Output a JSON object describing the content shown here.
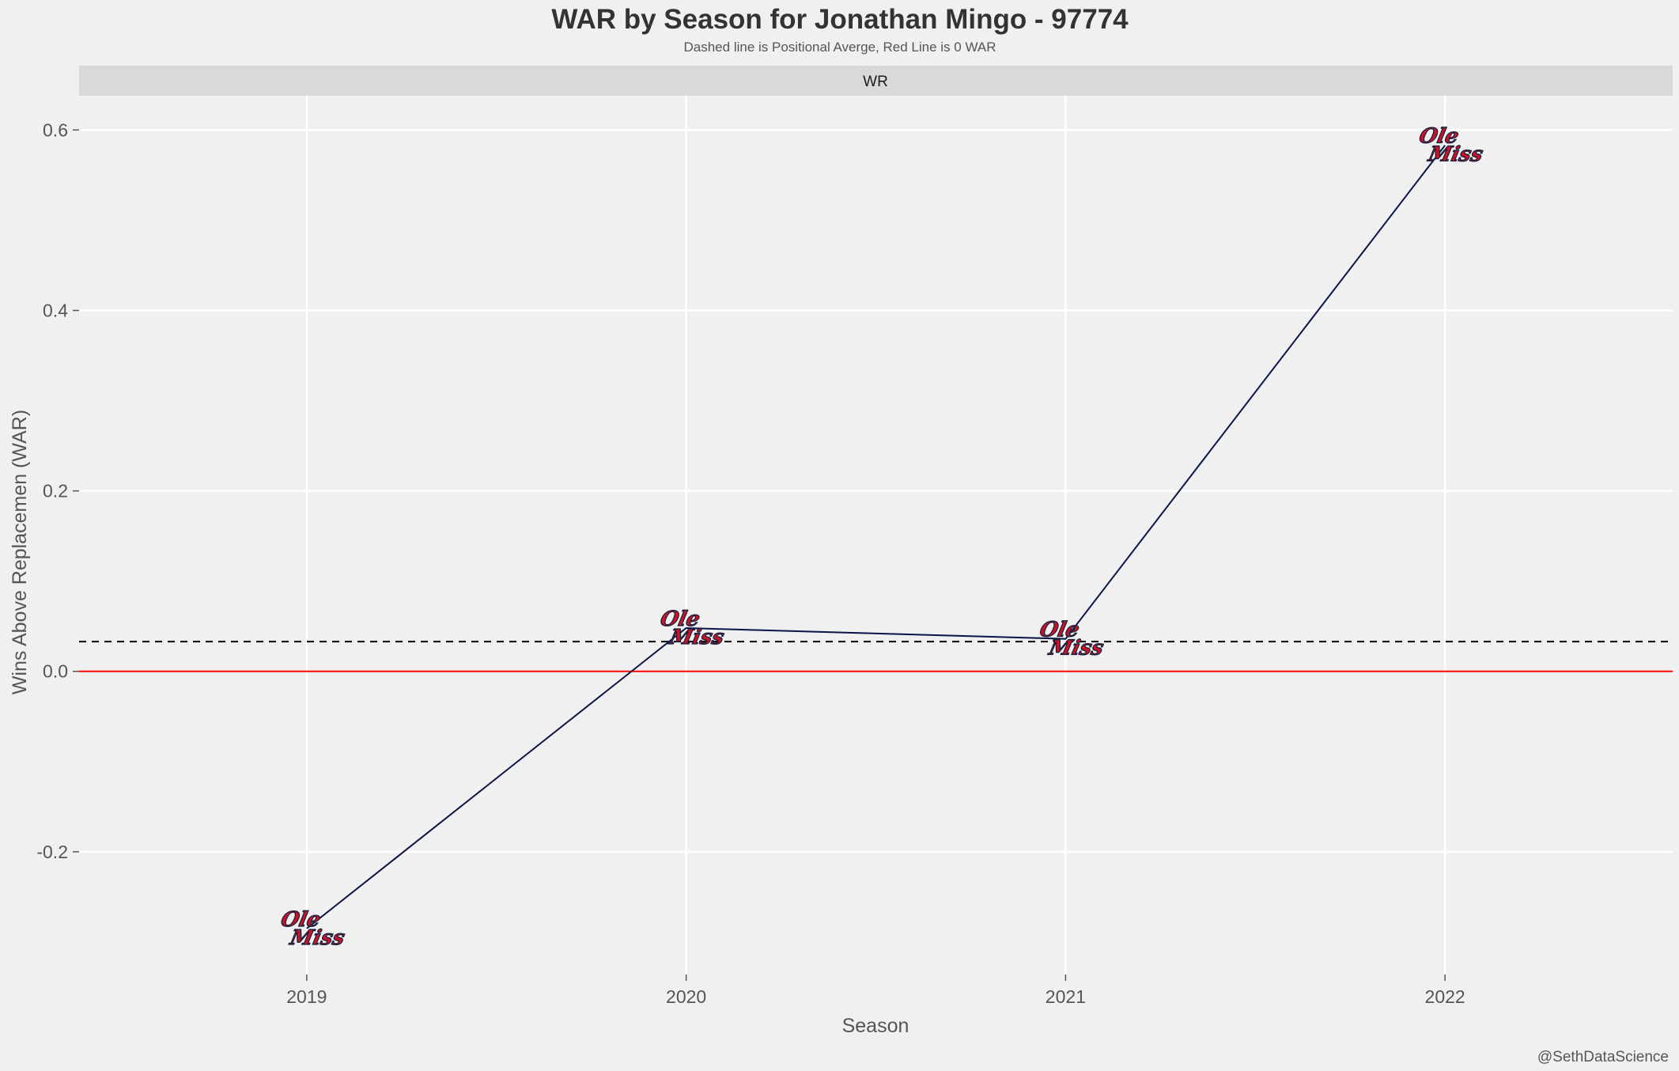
{
  "chart_data": {
    "type": "line",
    "title": "WAR by Season for Jonathan Mingo - 97774",
    "subtitle": "Dashed line is Positional Averge, Red Line is 0 WAR",
    "facet_label": "WR",
    "xlabel": "Season",
    "ylabel": "Wins Above Replacemen (WAR)",
    "caption": "@SethDataScience",
    "x": [
      2019,
      2020,
      2021,
      2022
    ],
    "x_tick_labels": [
      "2019",
      "2020",
      "2021",
      "2022"
    ],
    "xlim": [
      2018.4,
      2022.6
    ],
    "y_ticks": [
      -0.2,
      0.0,
      0.2,
      0.4,
      0.6
    ],
    "y_tick_labels": [
      "-0.2",
      "0.0",
      "0.2",
      "0.4",
      "0.6"
    ],
    "ylim": [
      -0.336,
      0.638
    ],
    "grid": true,
    "series": [
      {
        "values": [
          -0.285,
          0.048,
          0.036,
          0.583
        ],
        "color": "#0b1547",
        "point_marker": "ole-miss-logo-icon"
      }
    ],
    "reference_lines": [
      {
        "y": 0.033,
        "style": "dashed",
        "color": "#000000"
      },
      {
        "y": 0.0,
        "style": "solid",
        "color": "#ff0000"
      }
    ],
    "logo": {
      "line1": "Ole",
      "line2": "Miss",
      "fill": "#ce1126",
      "stroke": "#14213d"
    }
  }
}
